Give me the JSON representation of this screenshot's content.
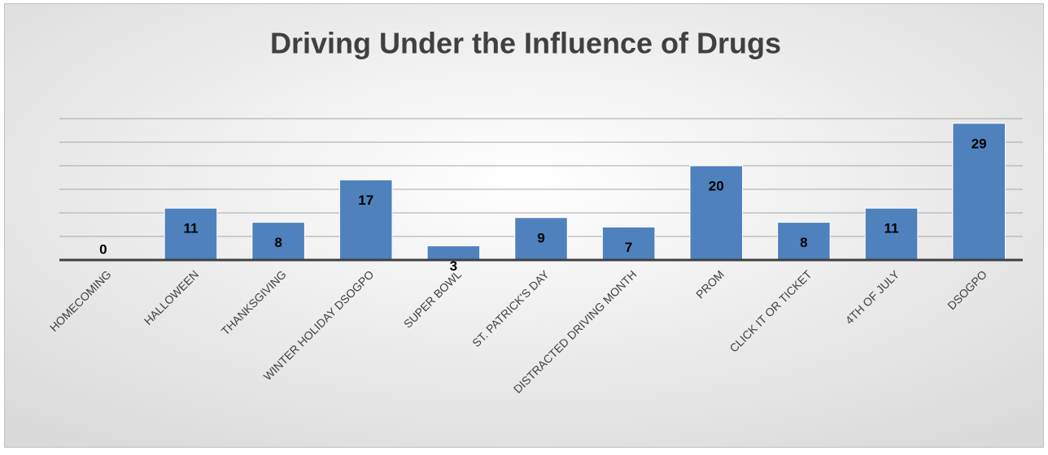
{
  "chart_data": {
    "type": "bar",
    "title": "Driving Under the Influence of Drugs",
    "categories": [
      "HOMECOMING",
      "HALLOWEEN",
      "THANKSGIVING",
      "WINTER HOLIDAY DSOGPO",
      "SUPER BOWL",
      "ST. PATRICK'S DAY",
      "DISTRACTED DRIVING MONTH",
      "PROM",
      "CLICK IT OR TICKET",
      "4TH OF JULY",
      "DSOGPO"
    ],
    "values": [
      0,
      11,
      8,
      17,
      3,
      9,
      7,
      20,
      8,
      11,
      29
    ],
    "color": "#4f81bd",
    "ylim": [
      0,
      30
    ],
    "yticks": [
      0,
      5,
      10,
      15,
      20,
      25,
      30
    ],
    "grid": true
  }
}
